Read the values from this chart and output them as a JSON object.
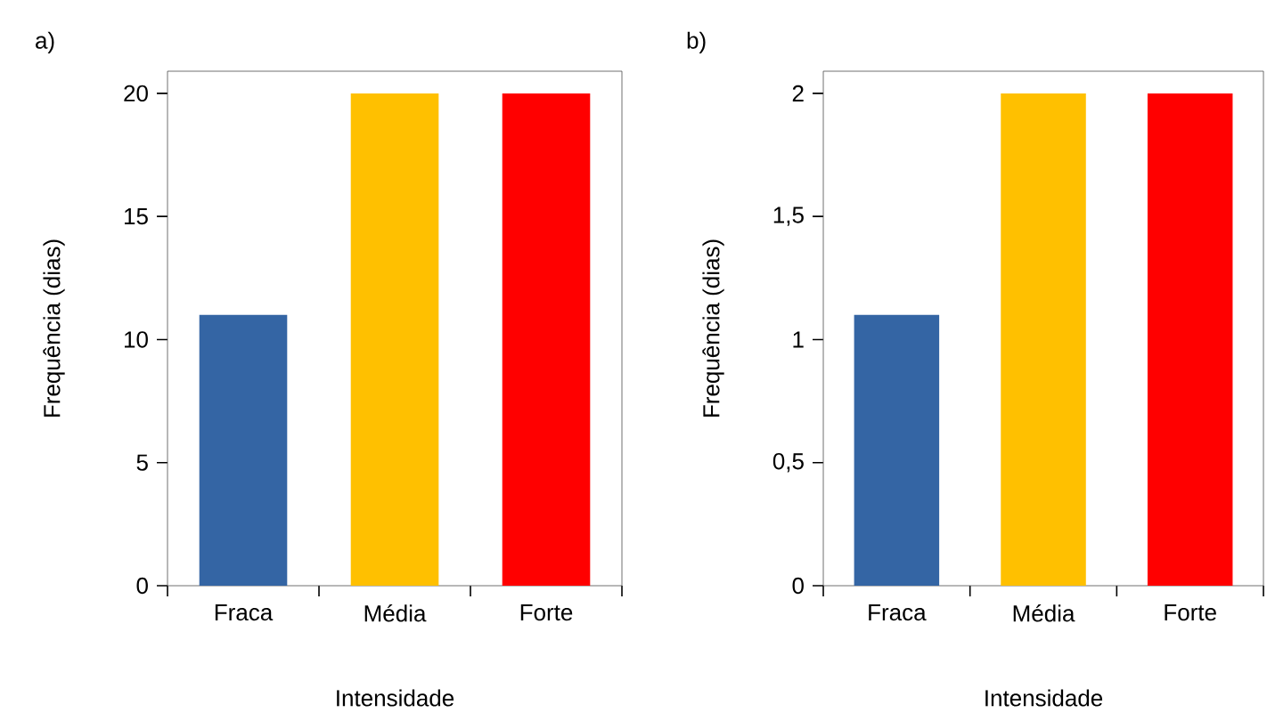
{
  "chart_data": [
    {
      "type": "bar",
      "title": "a)",
      "xlabel": "Intensidade",
      "ylabel": "Frequência (dias)",
      "categories": [
        "Fraca",
        "Média",
        "Forte"
      ],
      "values": [
        11,
        20,
        20
      ],
      "colors": [
        "#3465a4",
        "#ffc000",
        "#ff0000"
      ],
      "ylim": [
        0,
        20.9
      ],
      "yticks": [
        0,
        5,
        10,
        15,
        20
      ]
    },
    {
      "type": "bar",
      "title": "b)",
      "xlabel": "Intensidade",
      "ylabel": "Frequência (dias)",
      "categories": [
        "Fraca",
        "Média",
        "Forte"
      ],
      "values": [
        1.1,
        2,
        2
      ],
      "colors": [
        "#3465a4",
        "#ffc000",
        "#ff0000"
      ],
      "ylim": [
        0,
        2.09
      ],
      "yticks": [
        0,
        {
          "value": 0.5,
          "label": "0,5"
        },
        1,
        {
          "value": 1.5,
          "label": "1,5"
        },
        2
      ]
    }
  ]
}
